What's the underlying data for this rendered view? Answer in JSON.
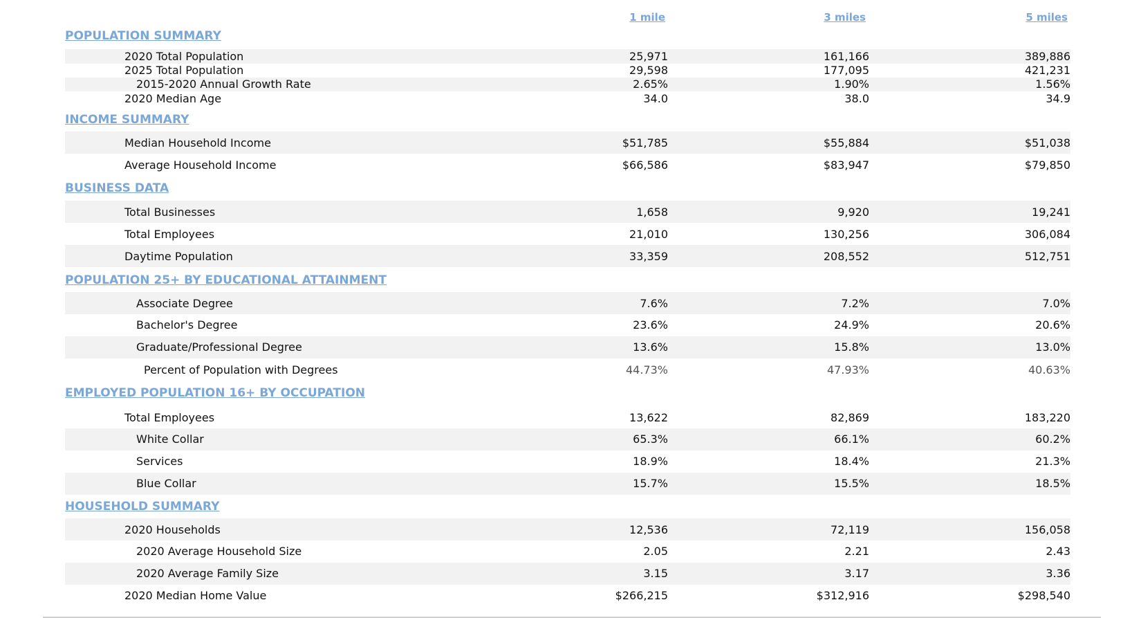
{
  "columns": {
    "c1": "1 mile",
    "c3": "3 miles",
    "c5": "5 miles"
  },
  "sections": {
    "population": "POPULATION SUMMARY",
    "income": "INCOME SUMMARY",
    "business": "BUSINESS DATA",
    "education": "POPULATION 25+ BY EDUCATIONAL ATTAINMENT",
    "occupation": "EMPLOYED POPULATION 16+ BY OCCUPATION",
    "household": "HOUSEHOLD SUMMARY"
  },
  "rows": {
    "pop2020": {
      "label": "2020 Total Population",
      "v1": "25,971",
      "v3": "161,166",
      "v5": "389,886"
    },
    "pop2025": {
      "label": "2025 Total Population",
      "v1": "29,598",
      "v3": "177,095",
      "v5": "421,231"
    },
    "growth": {
      "label": "2015-2020 Annual Growth Rate",
      "v1": "2.65%",
      "v3": "1.90%",
      "v5": "1.56%"
    },
    "medage": {
      "label": "2020 Median Age",
      "v1": "34.0",
      "v3": "38.0",
      "v5": "34.9"
    },
    "medinc": {
      "label": "Median Household Income",
      "v1": "$51,785",
      "v3": "$55,884",
      "v5": "$51,038"
    },
    "avginc": {
      "label": "Average Household Income",
      "v1": "$66,586",
      "v3": "$83,947",
      "v5": "$79,850"
    },
    "totbus": {
      "label": "Total Businesses",
      "v1": "1,658",
      "v3": "9,920",
      "v5": "19,241"
    },
    "totemp": {
      "label": "Total Employees",
      "v1": "21,010",
      "v3": "130,256",
      "v5": "306,084"
    },
    "daypop": {
      "label": "Daytime Population",
      "v1": "33,359",
      "v3": "208,552",
      "v5": "512,751"
    },
    "assoc": {
      "label": "Associate Degree",
      "v1": "7.6%",
      "v3": "7.2%",
      "v5": "7.0%"
    },
    "bach": {
      "label": "Bachelor's Degree",
      "v1": "23.6%",
      "v3": "24.9%",
      "v5": "20.6%"
    },
    "grad": {
      "label": "Graduate/Professional Degree",
      "v1": "13.6%",
      "v3": "15.8%",
      "v5": "13.0%"
    },
    "pctdeg": {
      "label": "Percent of Population with Degrees",
      "v1": "44.73%",
      "v3": "47.93%",
      "v5": "40.63%"
    },
    "occemp": {
      "label": "Total Employees",
      "v1": "13,622",
      "v3": "82,869",
      "v5": "183,220"
    },
    "white": {
      "label": "White Collar",
      "v1": "65.3%",
      "v3": "66.1%",
      "v5": "60.2%"
    },
    "serv": {
      "label": "Services",
      "v1": "18.9%",
      "v3": "18.4%",
      "v5": "21.3%"
    },
    "blue": {
      "label": "Blue Collar",
      "v1": "15.7%",
      "v3": "15.5%",
      "v5": "18.5%"
    },
    "hh": {
      "label": "2020 Households",
      "v1": "12,536",
      "v3": "72,119",
      "v5": "156,058"
    },
    "hhsize": {
      "label": "2020 Average Household Size",
      "v1": "2.05",
      "v3": "2.21",
      "v5": "2.43"
    },
    "famsize": {
      "label": "2020 Average Family Size",
      "v1": "3.15",
      "v3": "3.17",
      "v5": "3.36"
    },
    "homeval": {
      "label": "2020 Median Home Value",
      "v1": "$266,215",
      "v3": "$312,916",
      "v5": "$298,540"
    }
  }
}
